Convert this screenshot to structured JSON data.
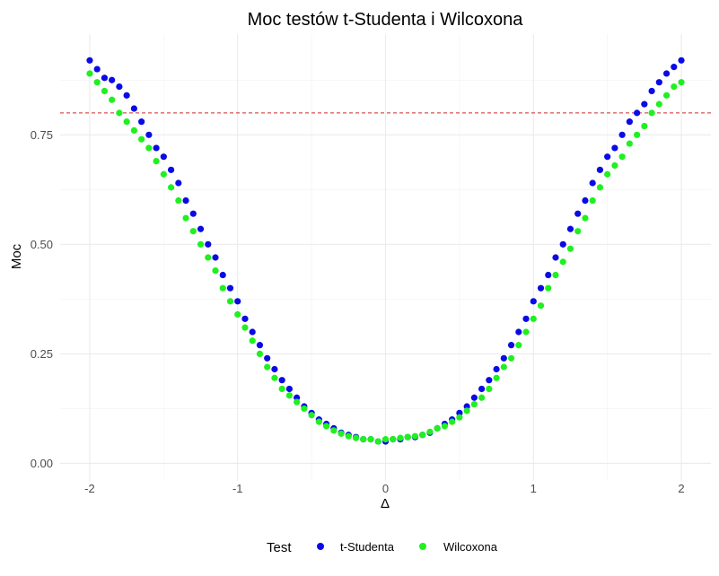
{
  "chart_data": {
    "type": "scatter",
    "title": "Moc testów t-Studenta i Wilcoxona",
    "xlabel": "Δ",
    "ylabel": "Moc",
    "xlim": [
      -2.2,
      2.2
    ],
    "ylim": [
      -0.04,
      0.98
    ],
    "x_ticks": [
      -2,
      -1,
      0,
      1,
      2
    ],
    "x_tick_labels": [
      "-2",
      "-1",
      "0",
      "1",
      "2"
    ],
    "y_ticks": [
      0,
      0.25,
      0.5,
      0.75
    ],
    "y_tick_labels": [
      "0.00",
      "0.25",
      "0.50",
      "0.75"
    ],
    "grid": true,
    "reference_line": {
      "y": 0.8,
      "style": "dashed",
      "color": "#cc2a2a"
    },
    "legend": {
      "title": "Test",
      "position": "bottom"
    },
    "series": [
      {
        "name": "t-Studenta",
        "color": "#0a0ae6",
        "x": [
          -2.0,
          -1.95,
          -1.9,
          -1.85,
          -1.8,
          -1.75,
          -1.7,
          -1.65,
          -1.6,
          -1.55,
          -1.5,
          -1.45,
          -1.4,
          -1.35,
          -1.3,
          -1.25,
          -1.2,
          -1.15,
          -1.1,
          -1.05,
          -1.0,
          -0.95,
          -0.9,
          -0.85,
          -0.8,
          -0.75,
          -0.7,
          -0.65,
          -0.6,
          -0.55,
          -0.5,
          -0.45,
          -0.4,
          -0.35,
          -0.3,
          -0.25,
          -0.2,
          -0.15,
          -0.1,
          -0.05,
          0.0,
          0.05,
          0.1,
          0.15,
          0.2,
          0.25,
          0.3,
          0.35,
          0.4,
          0.45,
          0.5,
          0.55,
          0.6,
          0.65,
          0.7,
          0.75,
          0.8,
          0.85,
          0.9,
          0.95,
          1.0,
          1.05,
          1.1,
          1.15,
          1.2,
          1.25,
          1.3,
          1.35,
          1.4,
          1.45,
          1.5,
          1.55,
          1.6,
          1.65,
          1.7,
          1.75,
          1.8,
          1.85,
          1.9,
          1.95,
          2.0
        ],
        "y": [
          0.92,
          0.9,
          0.88,
          0.875,
          0.86,
          0.84,
          0.81,
          0.78,
          0.75,
          0.72,
          0.7,
          0.67,
          0.64,
          0.6,
          0.57,
          0.535,
          0.5,
          0.47,
          0.43,
          0.4,
          0.37,
          0.33,
          0.3,
          0.27,
          0.24,
          0.215,
          0.19,
          0.17,
          0.15,
          0.13,
          0.115,
          0.1,
          0.09,
          0.08,
          0.07,
          0.065,
          0.06,
          0.055,
          0.055,
          0.05,
          0.05,
          0.055,
          0.055,
          0.06,
          0.06,
          0.065,
          0.07,
          0.08,
          0.09,
          0.1,
          0.115,
          0.13,
          0.15,
          0.17,
          0.19,
          0.215,
          0.24,
          0.27,
          0.3,
          0.33,
          0.37,
          0.4,
          0.43,
          0.47,
          0.5,
          0.535,
          0.57,
          0.6,
          0.64,
          0.67,
          0.7,
          0.72,
          0.75,
          0.78,
          0.8,
          0.82,
          0.85,
          0.87,
          0.89,
          0.905,
          0.92
        ]
      },
      {
        "name": "Wilcoxona",
        "color": "#1ff01f",
        "x": [
          -2.0,
          -1.95,
          -1.9,
          -1.85,
          -1.8,
          -1.75,
          -1.7,
          -1.65,
          -1.6,
          -1.55,
          -1.5,
          -1.45,
          -1.4,
          -1.35,
          -1.3,
          -1.25,
          -1.2,
          -1.15,
          -1.1,
          -1.05,
          -1.0,
          -0.95,
          -0.9,
          -0.85,
          -0.8,
          -0.75,
          -0.7,
          -0.65,
          -0.6,
          -0.55,
          -0.5,
          -0.45,
          -0.4,
          -0.35,
          -0.3,
          -0.25,
          -0.2,
          -0.15,
          -0.1,
          -0.05,
          0.0,
          0.05,
          0.1,
          0.15,
          0.2,
          0.25,
          0.3,
          0.35,
          0.4,
          0.45,
          0.5,
          0.55,
          0.6,
          0.65,
          0.7,
          0.75,
          0.8,
          0.85,
          0.9,
          0.95,
          1.0,
          1.05,
          1.1,
          1.15,
          1.2,
          1.25,
          1.3,
          1.35,
          1.4,
          1.45,
          1.5,
          1.55,
          1.6,
          1.65,
          1.7,
          1.75,
          1.8,
          1.85,
          1.9,
          1.95,
          2.0
        ],
        "y": [
          0.89,
          0.87,
          0.85,
          0.83,
          0.8,
          0.78,
          0.76,
          0.74,
          0.72,
          0.69,
          0.66,
          0.63,
          0.6,
          0.56,
          0.53,
          0.5,
          0.47,
          0.44,
          0.4,
          0.37,
          0.34,
          0.31,
          0.28,
          0.25,
          0.22,
          0.195,
          0.17,
          0.155,
          0.14,
          0.125,
          0.11,
          0.095,
          0.085,
          0.075,
          0.068,
          0.062,
          0.058,
          0.055,
          0.055,
          0.05,
          0.055,
          0.055,
          0.058,
          0.06,
          0.062,
          0.065,
          0.072,
          0.08,
          0.085,
          0.095,
          0.105,
          0.12,
          0.135,
          0.15,
          0.17,
          0.195,
          0.22,
          0.24,
          0.27,
          0.3,
          0.33,
          0.36,
          0.4,
          0.43,
          0.46,
          0.49,
          0.53,
          0.56,
          0.6,
          0.63,
          0.66,
          0.68,
          0.7,
          0.73,
          0.75,
          0.77,
          0.8,
          0.82,
          0.84,
          0.86,
          0.87
        ]
      }
    ]
  }
}
